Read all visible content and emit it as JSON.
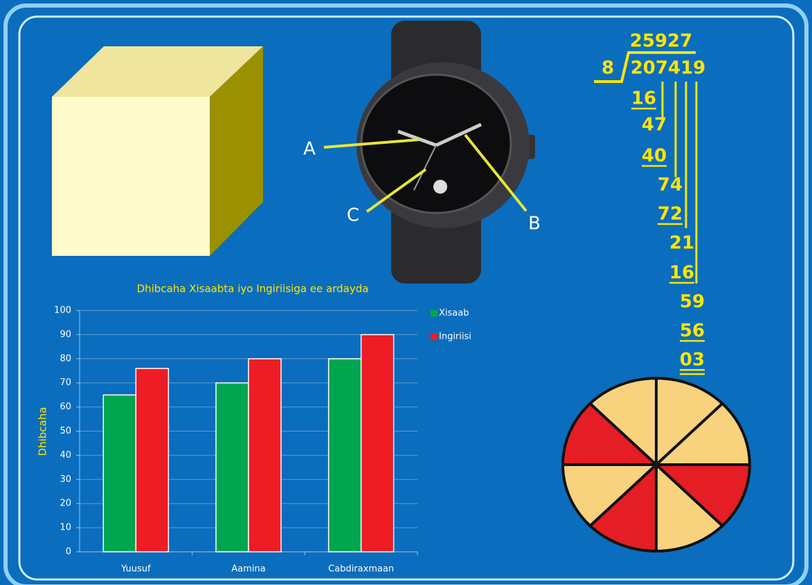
{
  "watch": {
    "labels": [
      "A",
      "B",
      "C"
    ]
  },
  "division": {
    "quotient": "25927",
    "divisor": "8",
    "dividend": "207419",
    "steps": [
      "16",
      "47",
      "40",
      "74",
      "72",
      "21",
      "16",
      "59",
      "56",
      "03"
    ]
  },
  "chart_data": {
    "type": "bar",
    "title": "Dhibcaha Xisaabta iyo Ingiriisiga ee ardayda",
    "y_label": "Dhibcaha",
    "categories": [
      "Yuusuf",
      "Aamina",
      "Cabdiraxmaan"
    ],
    "series": [
      {
        "name": "Xisaab",
        "color": "#00a64f",
        "values": [
          65,
          70,
          80
        ]
      },
      {
        "name": "Ingiriisi",
        "color": "#ee1c25",
        "values": [
          76,
          80,
          90
        ]
      }
    ],
    "ylim": [
      0,
      100
    ],
    "yticks": [
      0,
      10,
      20,
      30,
      40,
      50,
      60,
      70,
      80,
      90,
      100
    ],
    "grid": true,
    "legend": "right"
  }
}
